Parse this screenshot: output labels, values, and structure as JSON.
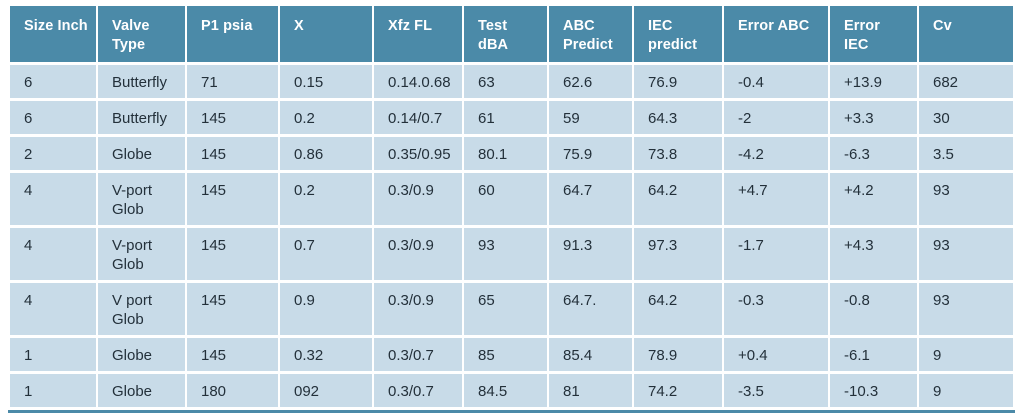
{
  "colors": {
    "header_bg": "#4B8AA8",
    "row_bg": "#C8DBE8",
    "header_text": "#FFFFFF",
    "body_text": "#23303A",
    "page_bg": "#FFFFFF"
  },
  "table": {
    "columns": [
      "Size Inch",
      "Valve Type",
      "P1 psia",
      "X",
      "Xfz FL",
      "Test dBA",
      "ABC Predict",
      "IEC predict",
      "Error ABC",
      "Error  IEC",
      "Cv"
    ],
    "rows": [
      [
        "6",
        "Butterfly",
        "71",
        "0.15",
        "0.14.0.68",
        "63",
        "62.6",
        "76.9",
        "-0.4",
        "+13.9",
        "682"
      ],
      [
        "6",
        "Butterfly",
        "145",
        "0.2",
        "0.14/0.7",
        "61",
        "59",
        "64.3",
        "-2",
        "+3.3",
        "30"
      ],
      [
        "2",
        "Globe",
        "145",
        "0.86",
        "0.35/0.95",
        "80.1",
        "75.9",
        "73.8",
        "-4.2",
        "-6.3",
        "3.5"
      ],
      [
        "4",
        "V-port Glob",
        "145",
        "0.2",
        "0.3/0.9",
        "60",
        "64.7",
        "64.2",
        "+4.7",
        "+4.2",
        "93"
      ],
      [
        "4",
        "V-port Glob",
        "145",
        "0.7",
        "0.3/0.9",
        "93",
        "91.3",
        "97.3",
        "-1.7",
        "+4.3",
        "93"
      ],
      [
        "4",
        "V port Glob",
        "145",
        "0.9",
        "0.3/0.9",
        "65",
        "64.7.",
        "64.2",
        "-0.3",
        "-0.8",
        "93"
      ],
      [
        "1",
        "Globe",
        "145",
        "0.32",
        "0.3/0.7",
        "85",
        "85.4",
        "78.9",
        "+0.4",
        "-6.1",
        "9"
      ],
      [
        "1",
        "Globe",
        "180",
        "092",
        "0.3/0.7",
        "84.5",
        "81",
        "74.2",
        "-3.5",
        "-10.3",
        "9"
      ]
    ],
    "tall_row_indexes": [
      3,
      4,
      5
    ]
  }
}
